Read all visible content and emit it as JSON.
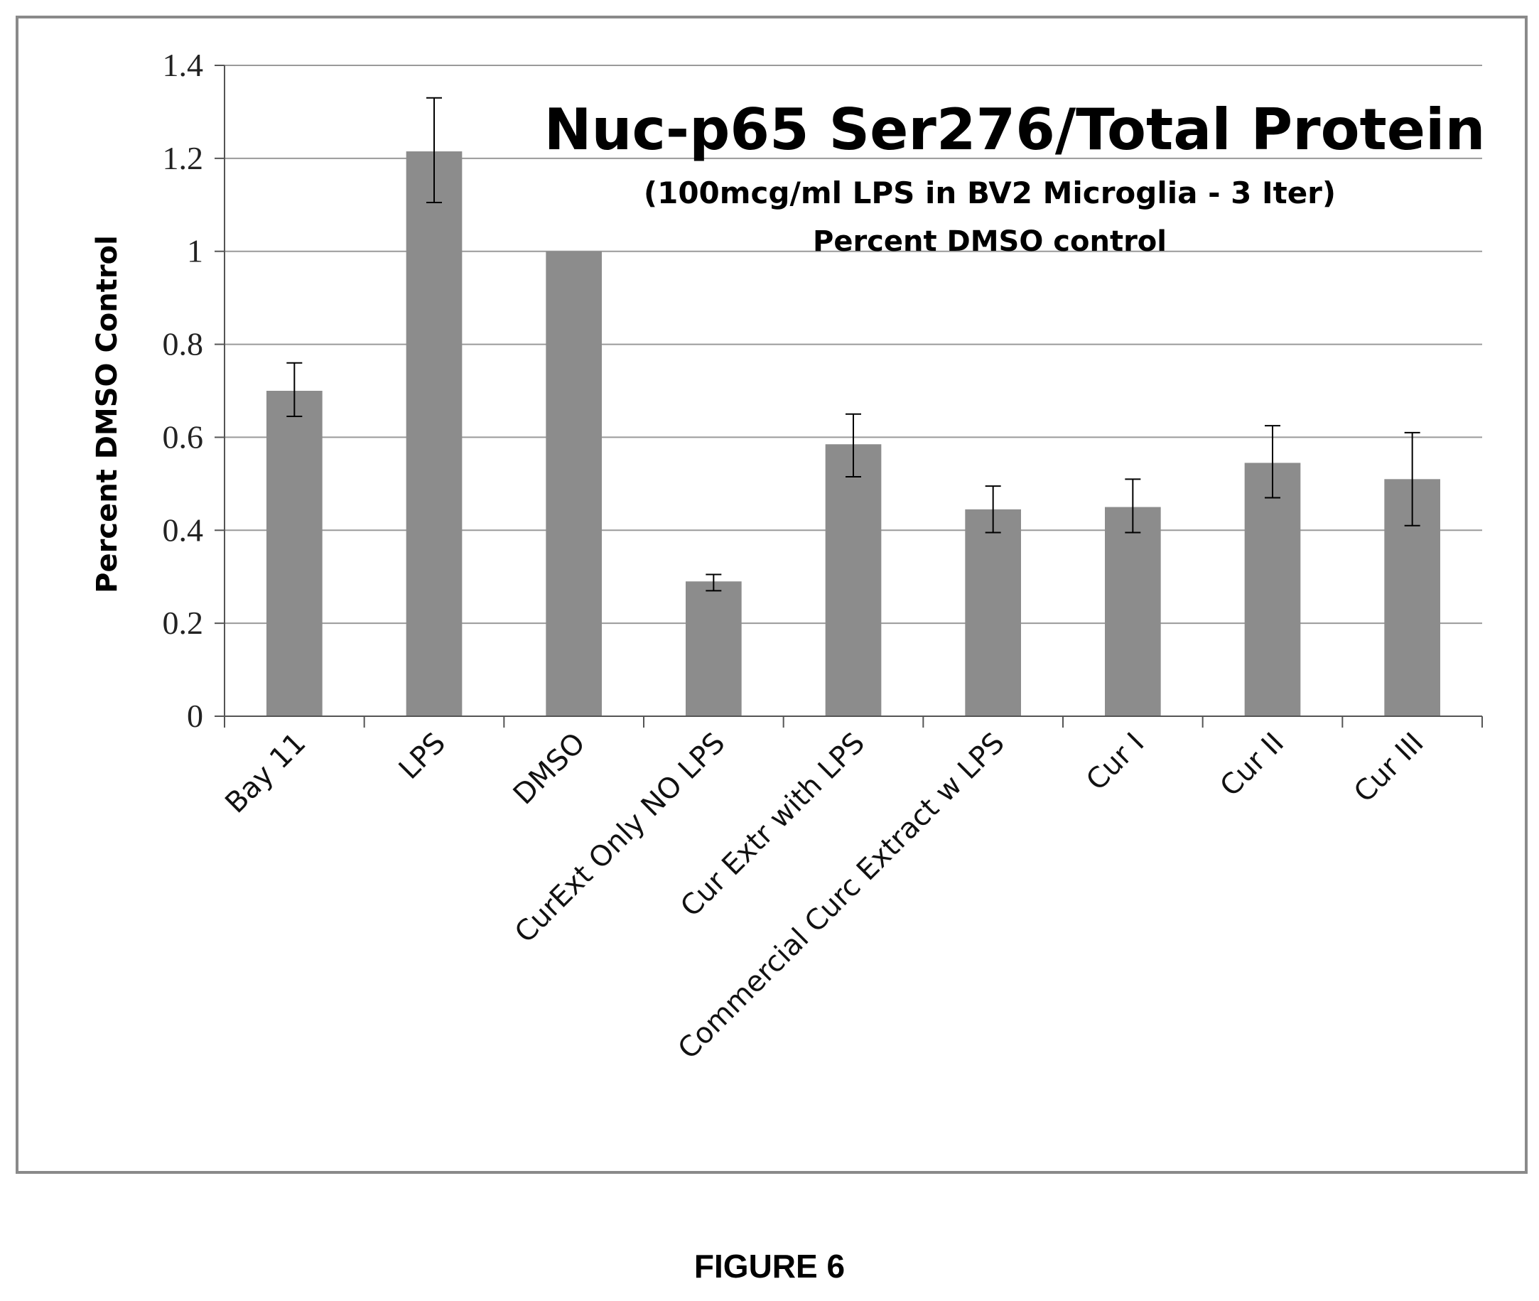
{
  "figure_caption": "FIGURE 6",
  "chart_data": {
    "type": "bar",
    "title": "Nuc-p65 Ser276/Total Protein",
    "subtitle": "(100mcg/ml LPS in BV2 Microglia - 3 Iter)",
    "subtitle2": "Percent DMSO control",
    "xlabel": "",
    "ylabel": "Percent DMSO Control",
    "ylim": [
      0,
      1.4
    ],
    "yticks": [
      "0",
      "0.2",
      "0.4",
      "0.6",
      "0.8",
      "1",
      "1.2",
      "1.4"
    ],
    "ytick_values": [
      0,
      0.2,
      0.4,
      0.6,
      0.8,
      1.0,
      1.2,
      1.4
    ],
    "grid": true,
    "bar_color": "#8c8c8c",
    "categories": [
      "Bay 11",
      "LPS",
      "DMSO",
      "CurExt Only NO LPS",
      "Cur Extr with LPS",
      "Commercial Curc Extract w LPS",
      "Cur I",
      "Cur II",
      "Cur III"
    ],
    "values": [
      0.7,
      1.215,
      1.0,
      0.29,
      0.585,
      0.445,
      0.45,
      0.545,
      0.51
    ],
    "error_low": [
      0.645,
      1.105,
      1.0,
      0.27,
      0.515,
      0.395,
      0.395,
      0.47,
      0.41
    ],
    "error_high": [
      0.76,
      1.33,
      1.0,
      0.305,
      0.65,
      0.495,
      0.51,
      0.625,
      0.61
    ]
  }
}
